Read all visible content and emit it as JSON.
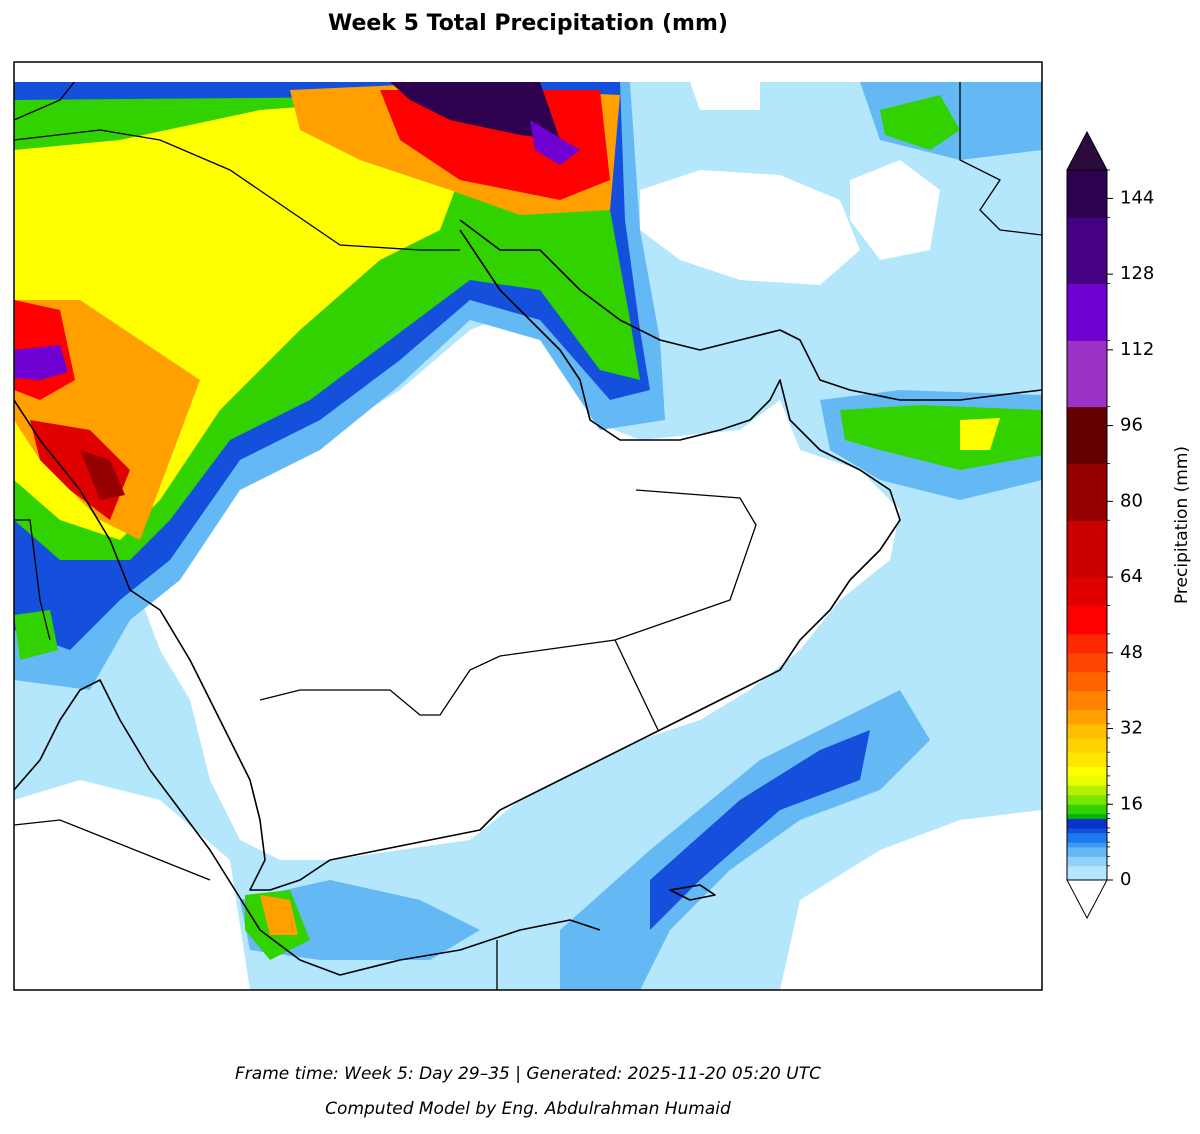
{
  "title": "Week 5 Total Precipitation (mm)",
  "colorbar": {
    "label": "Precipitation (mm)",
    "lim": [
      0,
      150
    ],
    "ticks": [
      0,
      16,
      32,
      48,
      64,
      80,
      96,
      112,
      128,
      144
    ],
    "levels": [
      0,
      3,
      5,
      7,
      8,
      10,
      11,
      13,
      14,
      16,
      18,
      20,
      22,
      24,
      27,
      30,
      33,
      36,
      40,
      44,
      48,
      52,
      58,
      64,
      76,
      88,
      100,
      114,
      126,
      140,
      150
    ],
    "colors": [
      "#b4e6fc",
      "#90d2fa",
      "#64b9f5",
      "#3c9bf0",
      "#1e78f0",
      "#1450dc",
      "#0a32c8",
      "#00b400",
      "#32d200",
      "#78e600",
      "#b4f000",
      "#e6ff00",
      "#ffff00",
      "#ffe600",
      "#ffd200",
      "#ffbe00",
      "#ffa000",
      "#ff8200",
      "#ff6400",
      "#ff4600",
      "#ff2800",
      "#ff0000",
      "#e10000",
      "#c80000",
      "#960000",
      "#640000",
      "#9b32c8",
      "#6e00d2",
      "#460082",
      "#2d0050"
    ],
    "extend": "both",
    "extend_colors": [
      "#ffffff",
      "#2a0a3f"
    ]
  },
  "footer": {
    "frame_time": "Frame time: Week 5: Day 29–35 | Generated: 2025-11-20 05:20 UTC",
    "credit": "Computed Model by Eng. Abdulrahman Humaid"
  }
}
